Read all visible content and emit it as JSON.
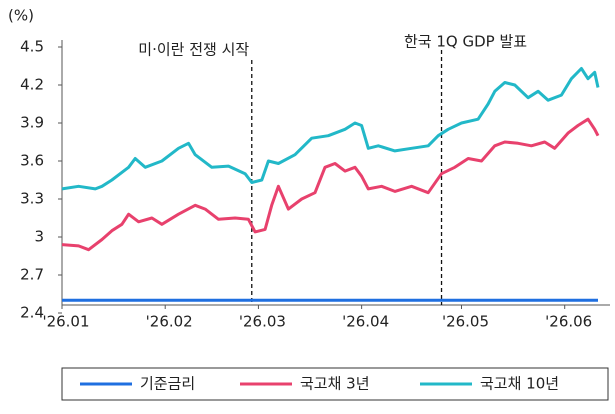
{
  "chart_data": {
    "type": "line",
    "y_label": "(%)",
    "xlim": [
      0,
      161
    ],
    "xticks": [
      {
        "value": 0,
        "label": "'26.01"
      },
      {
        "value": 31,
        "label": "'26.02"
      },
      {
        "value": 59,
        "label": "'26.03"
      },
      {
        "value": 90,
        "label": "'26.04"
      },
      {
        "value": 120,
        "label": "'26.05"
      },
      {
        "value": 151,
        "label": "'26.06"
      }
    ],
    "ylim": [
      2.4,
      4.5
    ],
    "yticks": [
      4.5,
      4.2,
      3.9,
      3.6,
      3.3,
      3,
      2.7,
      2.4
    ],
    "annotations": [
      {
        "x": 57,
        "text": "미·이란 전쟁 시작"
      },
      {
        "x": 114,
        "text": "한국 1Q GDP 발표"
      }
    ],
    "series": [
      {
        "name": "기준금리",
        "color": "#1f6fe0",
        "x": [
          0,
          161
        ],
        "values": [
          2.5,
          2.5
        ]
      },
      {
        "name": "국고채 3년",
        "color": "#e8416d",
        "x": [
          0,
          5,
          8,
          12,
          15,
          18,
          20,
          23,
          27,
          30,
          35,
          40,
          43,
          47,
          52,
          56,
          58,
          61,
          63,
          65,
          68,
          72,
          76,
          79,
          82,
          85,
          88,
          90,
          92,
          96,
          100,
          105,
          110,
          114,
          118,
          122,
          126,
          130,
          133,
          137,
          141,
          145,
          148,
          152,
          155,
          158,
          160,
          161
        ],
        "values": [
          2.94,
          2.93,
          2.9,
          2.98,
          3.05,
          3.1,
          3.18,
          3.12,
          3.15,
          3.1,
          3.18,
          3.25,
          3.22,
          3.14,
          3.15,
          3.14,
          3.04,
          3.06,
          3.25,
          3.4,
          3.22,
          3.3,
          3.35,
          3.55,
          3.58,
          3.52,
          3.55,
          3.48,
          3.38,
          3.4,
          3.36,
          3.4,
          3.35,
          3.5,
          3.55,
          3.62,
          3.6,
          3.72,
          3.75,
          3.74,
          3.72,
          3.75,
          3.7,
          3.82,
          3.88,
          3.93,
          3.85,
          3.8
        ]
      },
      {
        "name": "국고채 10년",
        "color": "#22b8c8",
        "x": [
          0,
          5,
          10,
          12,
          15,
          20,
          22,
          25,
          30,
          35,
          38,
          40,
          45,
          50,
          55,
          57,
          60,
          62,
          65,
          70,
          75,
          80,
          85,
          88,
          90,
          92,
          95,
          100,
          105,
          110,
          113,
          116,
          120,
          125,
          128,
          130,
          133,
          136,
          140,
          143,
          146,
          150,
          153,
          156,
          158,
          160,
          161
        ],
        "values": [
          3.38,
          3.4,
          3.38,
          3.4,
          3.45,
          3.55,
          3.62,
          3.55,
          3.6,
          3.7,
          3.74,
          3.65,
          3.55,
          3.56,
          3.5,
          3.43,
          3.45,
          3.6,
          3.58,
          3.65,
          3.78,
          3.8,
          3.85,
          3.9,
          3.88,
          3.7,
          3.72,
          3.68,
          3.7,
          3.72,
          3.8,
          3.85,
          3.9,
          3.93,
          4.05,
          4.15,
          4.22,
          4.2,
          4.1,
          4.15,
          4.08,
          4.12,
          4.25,
          4.33,
          4.25,
          4.3,
          4.18
        ]
      }
    ]
  }
}
